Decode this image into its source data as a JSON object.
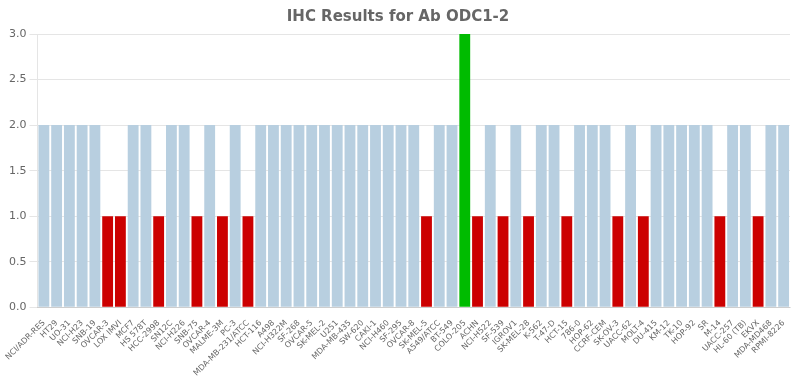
{
  "chart_data": {
    "type": "bar",
    "title": "IHC Results for Ab ODC1-2",
    "categories": [
      "NCI/ADR-RES",
      "HT29",
      "UO-31",
      "NCI-H23",
      "SNB-19",
      "OVCAR-3",
      "LOX IMVI",
      "MCF7",
      "HS 578T",
      "HCC-2998",
      "SN12C",
      "NCI-H226",
      "SNB-75",
      "OVCAR-4",
      "MALME-3M",
      "PC-3",
      "MDA-MB-231/ATCC",
      "HCT-116",
      "A498",
      "NCI-H322M",
      "SF-268",
      "OVCAR-5",
      "SK-MEL-2",
      "U251",
      "MDA-MB-435",
      "SW-620",
      "CAKI-1",
      "NCI-H460",
      "SF-295",
      "OVCAR-8",
      "SK-MEL-5",
      "A549/ATCC",
      "BT-549",
      "COLO-205",
      "ACHN",
      "NCI-H522",
      "SF-539",
      "IGROV1",
      "SK-MEL-28",
      "K-562",
      "T-47-D",
      "HCT-15",
      "786-0",
      "HOP-62",
      "CCRF-CEM",
      "SK-OV-3",
      "UACC-62",
      "MOLT-4",
      "DU-415",
      "KM-12",
      "TK-10",
      "HOP-92",
      "SR",
      "M-14",
      "UACC-257",
      "HL-60 (TB)",
      "EKVX",
      "MDA-MD468",
      "RPMI-8226"
    ],
    "values": [
      2,
      2,
      2,
      2,
      2,
      1,
      1,
      2,
      2,
      1,
      2,
      2,
      1,
      2,
      1,
      2,
      1,
      2,
      2,
      2,
      2,
      2,
      2,
      2,
      2,
      2,
      2,
      2,
      2,
      2,
      1,
      2,
      2,
      3,
      1,
      2,
      1,
      2,
      1,
      2,
      2,
      1,
      2,
      2,
      2,
      1,
      2,
      1,
      2,
      2,
      2,
      2,
      2,
      1,
      2,
      2,
      1,
      2,
      2
    ],
    "colors": [
      "#b8cfe0",
      "#b8cfe0",
      "#b8cfe0",
      "#b8cfe0",
      "#b8cfe0",
      "#cc0000",
      "#cc0000",
      "#b8cfe0",
      "#b8cfe0",
      "#cc0000",
      "#b8cfe0",
      "#b8cfe0",
      "#cc0000",
      "#b8cfe0",
      "#cc0000",
      "#b8cfe0",
      "#cc0000",
      "#b8cfe0",
      "#b8cfe0",
      "#b8cfe0",
      "#b8cfe0",
      "#b8cfe0",
      "#b8cfe0",
      "#b8cfe0",
      "#b8cfe0",
      "#b8cfe0",
      "#b8cfe0",
      "#b8cfe0",
      "#b8cfe0",
      "#b8cfe0",
      "#cc0000",
      "#b8cfe0",
      "#b8cfe0",
      "#00bb00",
      "#cc0000",
      "#b8cfe0",
      "#cc0000",
      "#b8cfe0",
      "#cc0000",
      "#b8cfe0",
      "#b8cfe0",
      "#cc0000",
      "#b8cfe0",
      "#b8cfe0",
      "#b8cfe0",
      "#cc0000",
      "#b8cfe0",
      "#cc0000",
      "#b8cfe0",
      "#b8cfe0",
      "#b8cfe0",
      "#b8cfe0",
      "#b8cfe0",
      "#cc0000",
      "#b8cfe0",
      "#b8cfe0",
      "#cc0000",
      "#b8cfe0",
      "#b8cfe0"
    ],
    "ylim": [
      0,
      3.0
    ],
    "yticks": [
      {
        "value": 0,
        "label": "0.0"
      },
      0.5,
      {
        "value": 1,
        "label": "1.0"
      },
      1.5,
      {
        "value": 2,
        "label": "2.0"
      },
      2.5,
      {
        "value": 3,
        "label": "3.0"
      }
    ],
    "grid": true
  }
}
